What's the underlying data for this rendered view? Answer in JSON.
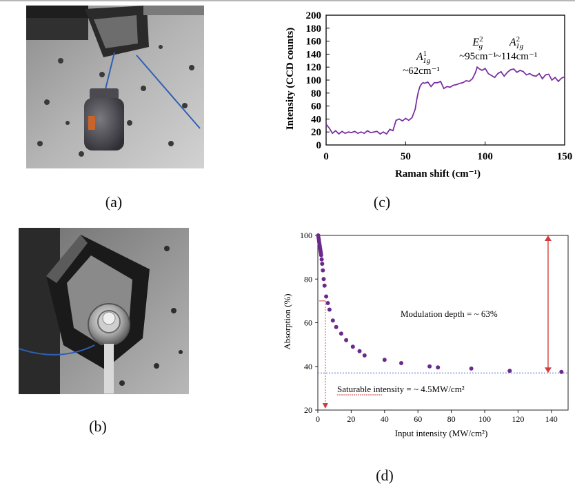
{
  "panel_labels": {
    "a": "(a)",
    "b": "(b)",
    "c": "(c)",
    "d": "(d)"
  },
  "chart_data": [
    {
      "type": "line",
      "panel": "c",
      "xlabel": "Raman shift (cm⁻¹)",
      "ylabel": "Intensity (CCD counts)",
      "xlim": [
        0,
        150
      ],
      "ylim": [
        0,
        200
      ],
      "xticks": [
        "0",
        "50",
        "100",
        "150"
      ],
      "yticks": [
        "0",
        "20",
        "40",
        "60",
        "80",
        "100",
        "120",
        "140",
        "160",
        "180",
        "200"
      ],
      "grid": false,
      "line_color": "#7a2fa3",
      "series": [
        {
          "x": [
            0,
            2,
            4,
            6,
            8,
            10,
            12,
            14,
            16,
            18,
            20,
            22,
            24,
            26,
            28,
            30,
            32,
            34,
            36,
            38,
            40,
            42,
            44,
            46,
            48,
            50,
            52,
            54,
            56,
            57,
            58,
            59,
            60,
            61,
            62,
            64,
            66,
            68,
            70,
            72,
            74,
            76,
            78,
            80,
            82,
            84,
            86,
            88,
            90,
            92,
            94,
            95,
            96,
            98,
            100,
            102,
            104,
            106,
            108,
            110,
            112,
            114,
            116,
            118,
            120,
            122,
            124,
            126,
            128,
            130,
            132,
            134,
            136,
            138,
            140,
            142,
            144,
            146,
            148,
            150
          ],
          "y": [
            32,
            26,
            18,
            22,
            17,
            21,
            18,
            20,
            19,
            21,
            18,
            20,
            18,
            22,
            19,
            20,
            21,
            17,
            20,
            17,
            24,
            22,
            38,
            40,
            37,
            41,
            38,
            42,
            55,
            70,
            82,
            90,
            94,
            96,
            95,
            97,
            90,
            96,
            96,
            98,
            87,
            90,
            89,
            92,
            93,
            95,
            96,
            99,
            98,
            102,
            112,
            120,
            118,
            115,
            118,
            110,
            107,
            104,
            110,
            113,
            106,
            112,
            116,
            117,
            112,
            115,
            113,
            108,
            110,
            107,
            106,
            110,
            102,
            108,
            109,
            100,
            104,
            98,
            103,
            105
          ]
        }
      ],
      "annotations": [
        {
          "symbol": "A",
          "sup": "1",
          "sub": "1g",
          "text": "~62cm⁻¹"
        },
        {
          "symbol": "E",
          "sup": "2",
          "sub": "g",
          "text": "~95cm⁻¹"
        },
        {
          "symbol": "A",
          "sup": "2",
          "sub": "1g",
          "text": "~114cm⁻¹"
        }
      ]
    },
    {
      "type": "scatter",
      "panel": "d",
      "xlabel": "Input intensity (MW/cm²)",
      "ylabel": "Absorption (%)",
      "xlim": [
        0,
        150
      ],
      "ylim": [
        20,
        100
      ],
      "xticks": [
        "0",
        "20",
        "40",
        "60",
        "80",
        "100",
        "120",
        "140"
      ],
      "yticks": [
        "20",
        "40",
        "60",
        "80",
        "100"
      ],
      "grid": false,
      "marker_color": "#6a2a8a",
      "series": [
        {
          "x": [
            0.2,
            0.4,
            0.6,
            0.8,
            1.0,
            1.2,
            1.4,
            1.6,
            1.8,
            2.0,
            2.3,
            2.6,
            3.0,
            3.5,
            4,
            5,
            6,
            7,
            9,
            11,
            14,
            17,
            21,
            25,
            28,
            40,
            50,
            67,
            72,
            92,
            115,
            146
          ],
          "y": [
            100,
            99,
            98,
            97,
            96,
            95,
            94,
            93,
            92,
            91,
            89,
            87,
            84,
            80,
            77,
            72,
            69,
            66,
            61,
            58,
            55,
            52,
            49,
            47,
            45,
            43,
            41.5,
            40,
            39.5,
            39,
            38,
            37.5
          ]
        }
      ],
      "reference_lines": {
        "saturable_level": 37,
        "saturable_intensity": 4.5,
        "depth_top": 100,
        "depth_bottom": 37,
        "depth_x": 138
      },
      "annotations": {
        "modulation": "Modulation depth = ~ 63%",
        "saturable": "Saturable intensity = ~ 4.5MW/cm²"
      }
    }
  ]
}
